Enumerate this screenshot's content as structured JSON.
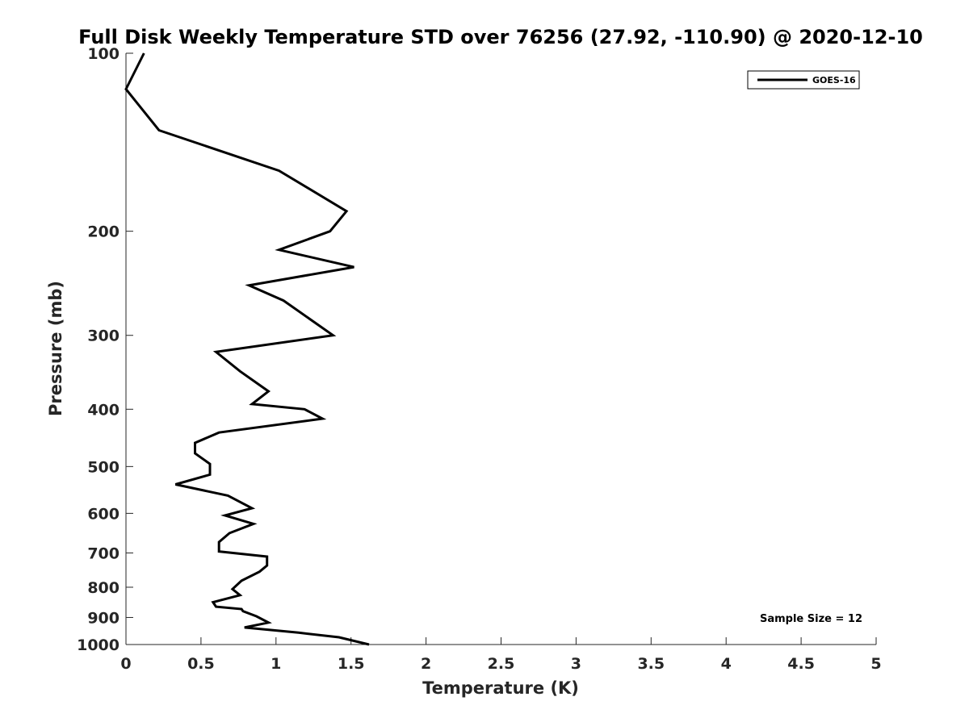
{
  "chart_data": {
    "type": "line",
    "title": "Full Disk Weekly Temperature STD over 76256 (27.92, -110.90) @ 2020-12-10",
    "xlabel": "Temperature (K)",
    "ylabel": "Pressure (mb)",
    "xlim": [
      0,
      5
    ],
    "ylim": [
      100,
      1000
    ],
    "y_scale": "log",
    "y_reversed": true,
    "x_ticks": [
      0,
      0.5,
      1,
      1.5,
      2,
      2.5,
      3,
      3.5,
      4,
      4.5,
      5
    ],
    "x_tick_labels": [
      "0",
      "0.5",
      "1",
      "1.5",
      "2",
      "2.5",
      "3",
      "3.5",
      "4",
      "4.5",
      "5"
    ],
    "y_ticks": [
      100,
      200,
      300,
      400,
      500,
      600,
      700,
      800,
      900,
      1000
    ],
    "y_tick_labels": [
      "100",
      "200",
      "300",
      "400",
      "500",
      "600",
      "700",
      "800",
      "900",
      "1000"
    ],
    "grid": false,
    "legend_position": "top-right",
    "annotation": "Sample Size = 12",
    "series": [
      {
        "name": "GOES-16",
        "color": "#000000",
        "points": [
          [
            0.12,
            100
          ],
          [
            0.0,
            115
          ],
          [
            0.22,
            135
          ],
          [
            1.02,
            158
          ],
          [
            1.47,
            185
          ],
          [
            1.36,
            200
          ],
          [
            1.02,
            215
          ],
          [
            1.52,
            230
          ],
          [
            0.82,
            247
          ],
          [
            1.05,
            262
          ],
          [
            1.38,
            300
          ],
          [
            0.6,
            320
          ],
          [
            0.76,
            345
          ],
          [
            0.95,
            373
          ],
          [
            0.84,
            392
          ],
          [
            1.19,
            400
          ],
          [
            1.31,
            415
          ],
          [
            0.62,
            438
          ],
          [
            0.46,
            456
          ],
          [
            0.46,
            475
          ],
          [
            0.56,
            495
          ],
          [
            0.56,
            516
          ],
          [
            0.33,
            536
          ],
          [
            0.68,
            560
          ],
          [
            0.84,
            588
          ],
          [
            0.66,
            605
          ],
          [
            0.85,
            625
          ],
          [
            0.69,
            648
          ],
          [
            0.62,
            671
          ],
          [
            0.62,
            696
          ],
          [
            0.94,
            710
          ],
          [
            0.94,
            735
          ],
          [
            0.89,
            753
          ],
          [
            0.77,
            780
          ],
          [
            0.71,
            806
          ],
          [
            0.76,
            825
          ],
          [
            0.58,
            848
          ],
          [
            0.6,
            863
          ],
          [
            0.77,
            871
          ],
          [
            0.78,
            878
          ],
          [
            0.87,
            896
          ],
          [
            0.95,
            918
          ],
          [
            0.79,
            936
          ],
          [
            1.15,
            955
          ],
          [
            1.42,
            972
          ],
          [
            1.62,
            1000
          ]
        ]
      }
    ]
  }
}
